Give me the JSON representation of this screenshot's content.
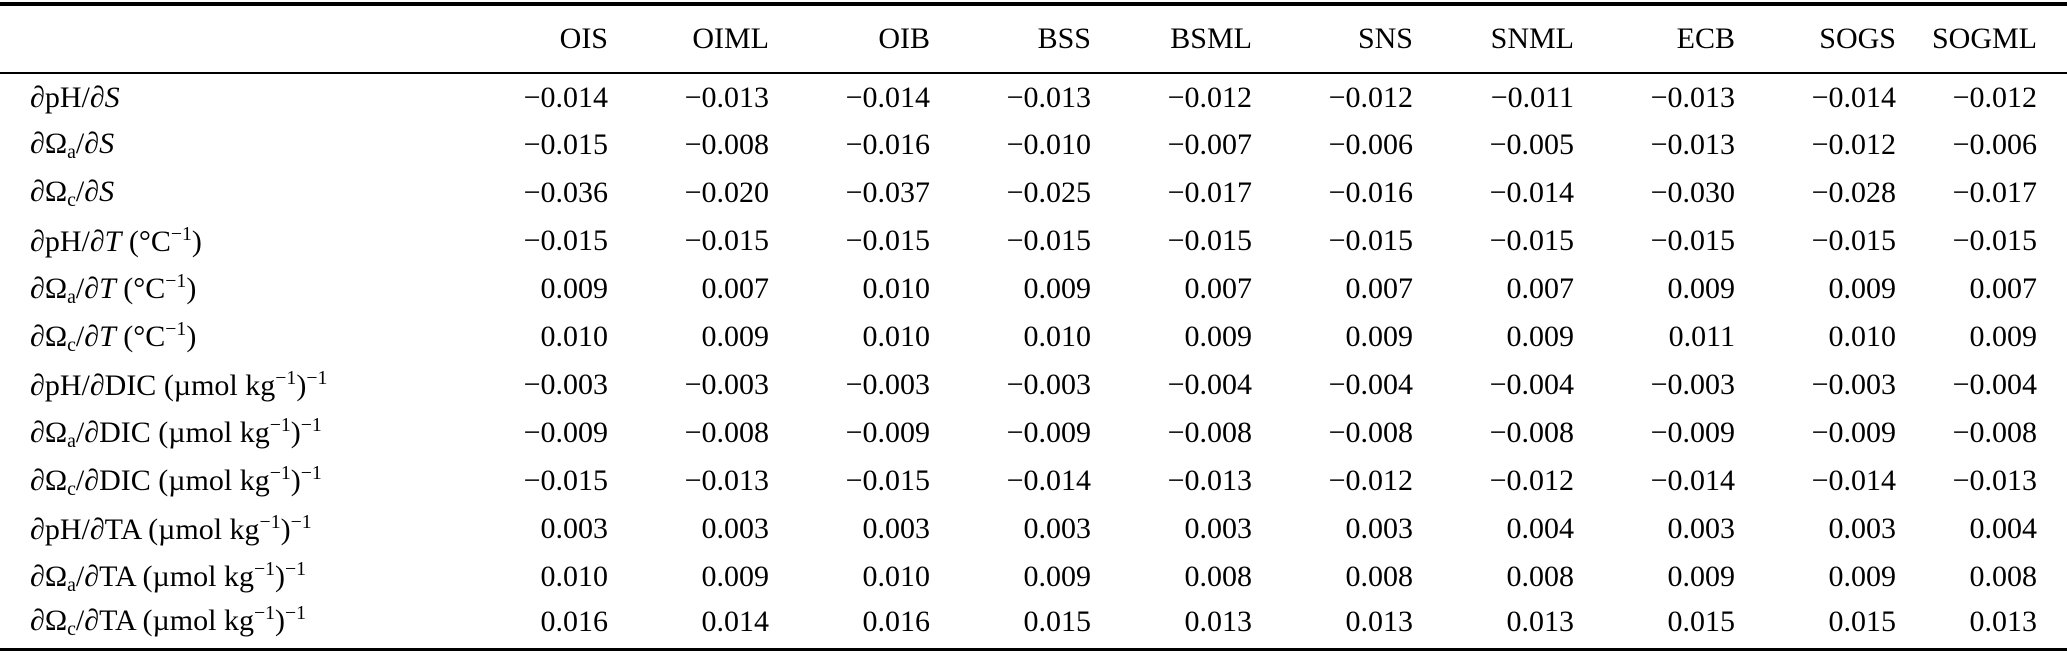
{
  "colors": {
    "background": "#ffffff",
    "text": "#000000",
    "rule": "#000000"
  },
  "table": {
    "corner_label": "",
    "columns": [
      "OIS",
      "OIML",
      "OIB",
      "BSS",
      "BSML",
      "SNS",
      "SNML",
      "ECB",
      "SOGS",
      "SOGML"
    ],
    "rows": [
      {
        "name": "dpH-dS",
        "label_text": "∂pH/∂S",
        "label_parts": [
          {
            "t": "∂",
            "i": true
          },
          {
            "t": "pH/"
          },
          {
            "t": "∂",
            "i": true
          },
          {
            "t": "S",
            "i": true
          }
        ],
        "values": [
          "−0.014",
          "−0.013",
          "−0.014",
          "−0.013",
          "−0.012",
          "−0.012",
          "−0.011",
          "−0.013",
          "−0.014",
          "−0.012"
        ]
      },
      {
        "name": "dOmegaA-dS",
        "label_text": "∂Ωa/∂S",
        "label_parts": [
          {
            "t": "∂",
            "i": true
          },
          {
            "t": "Ω"
          },
          {
            "t": "a",
            "sub": true
          },
          {
            "t": "/"
          },
          {
            "t": "∂",
            "i": true
          },
          {
            "t": "S",
            "i": true
          }
        ],
        "values": [
          "−0.015",
          "−0.008",
          "−0.016",
          "−0.010",
          "−0.007",
          "−0.006",
          "−0.005",
          "−0.013",
          "−0.012",
          "−0.006"
        ]
      },
      {
        "name": "dOmegaC-dS",
        "label_text": "∂Ωc/∂S",
        "label_parts": [
          {
            "t": "∂",
            "i": true
          },
          {
            "t": "Ω"
          },
          {
            "t": "c",
            "sub": true
          },
          {
            "t": "/"
          },
          {
            "t": "∂",
            "i": true
          },
          {
            "t": "S",
            "i": true
          }
        ],
        "values": [
          "−0.036",
          "−0.020",
          "−0.037",
          "−0.025",
          "−0.017",
          "−0.016",
          "−0.014",
          "−0.030",
          "−0.028",
          "−0.017"
        ]
      },
      {
        "name": "dpH-dT",
        "label_text": "∂pH/∂T (°C−1)",
        "label_parts": [
          {
            "t": "∂",
            "i": true
          },
          {
            "t": "pH/"
          },
          {
            "t": "∂",
            "i": true
          },
          {
            "t": "T",
            "i": true
          },
          {
            "t": " (°C"
          },
          {
            "t": "−1",
            "sup": true
          },
          {
            "t": ")"
          }
        ],
        "values": [
          "−0.015",
          "−0.015",
          "−0.015",
          "−0.015",
          "−0.015",
          "−0.015",
          "−0.015",
          "−0.015",
          "−0.015",
          "−0.015"
        ]
      },
      {
        "name": "dOmegaA-dT",
        "label_text": "∂Ωa/∂T (°C−1)",
        "label_parts": [
          {
            "t": "∂",
            "i": true
          },
          {
            "t": "Ω"
          },
          {
            "t": "a",
            "sub": true
          },
          {
            "t": "/"
          },
          {
            "t": "∂",
            "i": true
          },
          {
            "t": "T",
            "i": true
          },
          {
            "t": " (°C"
          },
          {
            "t": "−1",
            "sup": true
          },
          {
            "t": ")"
          }
        ],
        "values": [
          "0.009",
          "0.007",
          "0.010",
          "0.009",
          "0.007",
          "0.007",
          "0.007",
          "0.009",
          "0.009",
          "0.007"
        ]
      },
      {
        "name": "dOmegaC-dT",
        "label_text": "∂Ωc/∂T (°C−1)",
        "label_parts": [
          {
            "t": "∂",
            "i": true
          },
          {
            "t": "Ω"
          },
          {
            "t": "c",
            "sub": true
          },
          {
            "t": "/"
          },
          {
            "t": "∂",
            "i": true
          },
          {
            "t": "T",
            "i": true
          },
          {
            "t": " (°C"
          },
          {
            "t": "−1",
            "sup": true
          },
          {
            "t": ")"
          }
        ],
        "values": [
          "0.010",
          "0.009",
          "0.010",
          "0.010",
          "0.009",
          "0.009",
          "0.009",
          "0.011",
          "0.010",
          "0.009"
        ]
      },
      {
        "name": "dpH-dDIC",
        "label_text": "∂pH/∂DIC (µmol kg−1)−1",
        "label_parts": [
          {
            "t": "∂",
            "i": true
          },
          {
            "t": "pH/"
          },
          {
            "t": "∂",
            "i": true
          },
          {
            "t": "DIC (µmol kg"
          },
          {
            "t": "−1",
            "sup": true
          },
          {
            "t": ")"
          },
          {
            "t": "−1",
            "sup": true
          }
        ],
        "values": [
          "−0.003",
          "−0.003",
          "−0.003",
          "−0.003",
          "−0.004",
          "−0.004",
          "−0.004",
          "−0.003",
          "−0.003",
          "−0.004"
        ]
      },
      {
        "name": "dOmegaA-dDIC",
        "label_text": "∂Ωa/∂DIC (µmol kg−1)−1",
        "label_parts": [
          {
            "t": "∂",
            "i": true
          },
          {
            "t": "Ω"
          },
          {
            "t": "a",
            "sub": true
          },
          {
            "t": "/"
          },
          {
            "t": "∂",
            "i": true
          },
          {
            "t": "DIC (µmol kg"
          },
          {
            "t": "−1",
            "sup": true
          },
          {
            "t": ")"
          },
          {
            "t": "−1",
            "sup": true
          }
        ],
        "values": [
          "−0.009",
          "−0.008",
          "−0.009",
          "−0.009",
          "−0.008",
          "−0.008",
          "−0.008",
          "−0.009",
          "−0.009",
          "−0.008"
        ]
      },
      {
        "name": "dOmegaC-dDIC",
        "label_text": "∂Ωc/∂DIC (µmol kg−1)−1",
        "label_parts": [
          {
            "t": "∂",
            "i": true
          },
          {
            "t": "Ω"
          },
          {
            "t": "c",
            "sub": true
          },
          {
            "t": "/"
          },
          {
            "t": "∂",
            "i": true
          },
          {
            "t": "DIC (µmol kg"
          },
          {
            "t": "−1",
            "sup": true
          },
          {
            "t": ")"
          },
          {
            "t": "−1",
            "sup": true
          }
        ],
        "values": [
          "−0.015",
          "−0.013",
          "−0.015",
          "−0.014",
          "−0.013",
          "−0.012",
          "−0.012",
          "−0.014",
          "−0.014",
          "−0.013"
        ]
      },
      {
        "name": "dpH-dTA",
        "label_text": "∂pH/∂TA (µmol kg−1)−1",
        "label_parts": [
          {
            "t": "∂",
            "i": true
          },
          {
            "t": "pH/"
          },
          {
            "t": "∂",
            "i": true
          },
          {
            "t": "TA (µmol kg"
          },
          {
            "t": "−1",
            "sup": true
          },
          {
            "t": ")"
          },
          {
            "t": "−1",
            "sup": true
          }
        ],
        "values": [
          "0.003",
          "0.003",
          "0.003",
          "0.003",
          "0.003",
          "0.003",
          "0.004",
          "0.003",
          "0.003",
          "0.004"
        ]
      },
      {
        "name": "dOmegaA-dTA",
        "label_text": "∂Ωa/∂TA (µmol kg−1)−1",
        "label_parts": [
          {
            "t": "∂",
            "i": true
          },
          {
            "t": "Ω"
          },
          {
            "t": "a",
            "sub": true
          },
          {
            "t": "/"
          },
          {
            "t": "∂",
            "i": true
          },
          {
            "t": "TA (µmol kg"
          },
          {
            "t": "−1",
            "sup": true
          },
          {
            "t": ")"
          },
          {
            "t": "−1",
            "sup": true
          }
        ],
        "values": [
          "0.010",
          "0.009",
          "0.010",
          "0.009",
          "0.008",
          "0.008",
          "0.008",
          "0.009",
          "0.009",
          "0.008"
        ]
      },
      {
        "name": "dOmegaC-dTA",
        "label_text": "∂Ωc/∂TA (µmol kg−1)−1",
        "label_parts": [
          {
            "t": "∂",
            "i": true
          },
          {
            "t": "Ω"
          },
          {
            "t": "c",
            "sub": true
          },
          {
            "t": "/"
          },
          {
            "t": "∂",
            "i": true
          },
          {
            "t": "TA (µmol kg"
          },
          {
            "t": "−1",
            "sup": true
          },
          {
            "t": ")"
          },
          {
            "t": "−1",
            "sup": true
          }
        ],
        "values": [
          "0.016",
          "0.014",
          "0.016",
          "0.015",
          "0.013",
          "0.013",
          "0.013",
          "0.015",
          "0.015",
          "0.013"
        ]
      }
    ]
  }
}
